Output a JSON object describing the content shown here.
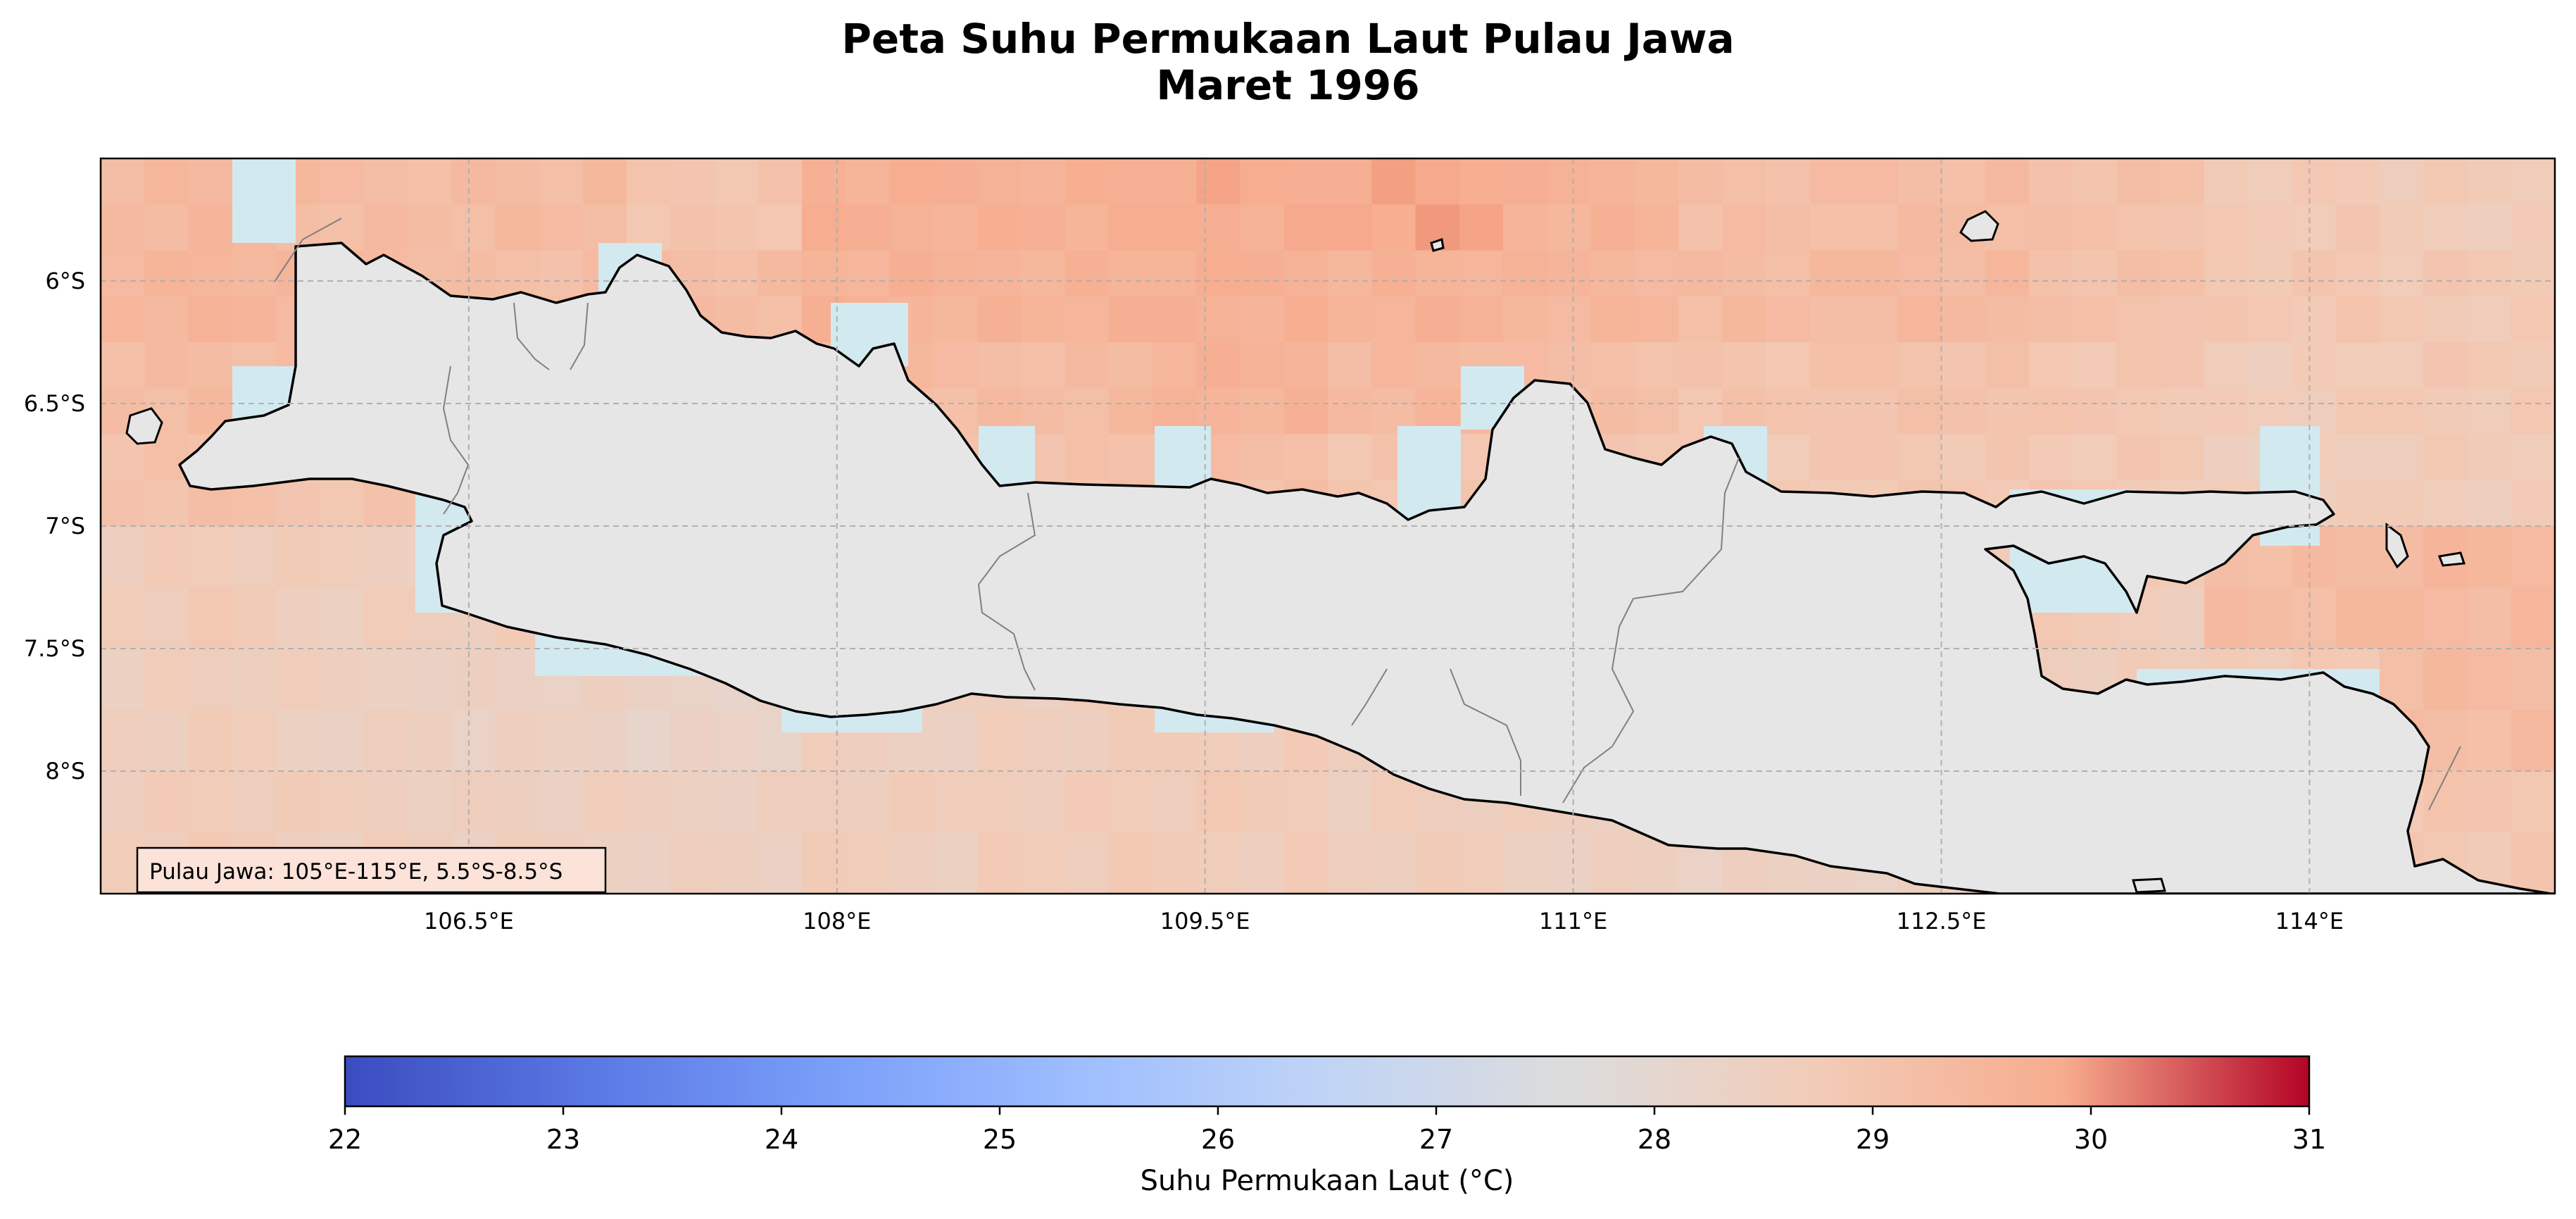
{
  "title": "Peta Suhu Permukaan Laut Pulau Jawa",
  "subtitle": "Maret 1996",
  "inset_label": "Pulau Jawa: 105°E-115°E, 5.5°S-8.5°S",
  "colorbar": {
    "label": "Suhu Permukaan Laut (°C)",
    "min": 22,
    "max": 31,
    "ticks": [
      "22",
      "23",
      "24",
      "25",
      "26",
      "27",
      "28",
      "29",
      "30",
      "31"
    ],
    "colormap": "coolwarm"
  },
  "colors": {
    "land": "#e6e6e6",
    "shallow_water": "#d3e9f0",
    "coast": "#000000",
    "province_border": "#808080",
    "grid": "#b0b0b0"
  },
  "chart_data": {
    "type": "heatmap",
    "title": "Peta Suhu Permukaan Laut Pulau Jawa",
    "subtitle": "Maret 1996",
    "xlim": [
      105,
      115
    ],
    "ylim": [
      -8.5,
      -5.5
    ],
    "lon_step": 0.25,
    "lat_step": 0.25,
    "x_ticks": [
      {
        "value": 106.5,
        "label": "106.5°E"
      },
      {
        "value": 108,
        "label": "108°E"
      },
      {
        "value": 109.5,
        "label": "109.5°E"
      },
      {
        "value": 111,
        "label": "111°E"
      },
      {
        "value": 112.5,
        "label": "112.5°E"
      },
      {
        "value": 114,
        "label": "114°E"
      }
    ],
    "y_ticks": [
      {
        "value": -6,
        "label": "6°S"
      },
      {
        "value": -6.5,
        "label": "6.5°S"
      },
      {
        "value": -7,
        "label": "7°S"
      },
      {
        "value": -7.5,
        "label": "7.5°S"
      },
      {
        "value": -8,
        "label": "8°S"
      }
    ],
    "grid": true,
    "north_band_values": [
      [
        29.4,
        29.3,
        29.3,
        29.0,
        29.7,
        29.7,
        29.8,
        29.9,
        29.6,
        29.2,
        29.3,
        29.1,
        28.8,
        28.7
      ],
      [
        29.5,
        29.4,
        29.2,
        29.3,
        29.6,
        29.6,
        29.7,
        29.6,
        29.5,
        29.3,
        29.4,
        29.1,
        28.9,
        28.8
      ],
      [
        29.3,
        29.2,
        29.1,
        29.2,
        29.3,
        29.3,
        29.6,
        29.4,
        29.2,
        29.0,
        29.1,
        28.9,
        28.7,
        28.8
      ],
      [
        29.1,
        29.0,
        28.9,
        29.0,
        29.0,
        29.1,
        29.2,
        29.0,
        29.0,
        28.8,
        28.9,
        28.8,
        28.6,
        28.7
      ]
    ],
    "south_band_values": [
      [
        28.7,
        28.6,
        28.6,
        28.5,
        28.7,
        28.8,
        28.9,
        28.7,
        28.6,
        28.5,
        28.6,
        28.7,
        29.3,
        29.4
      ],
      [
        28.6,
        28.5,
        28.4,
        28.3,
        28.5,
        28.6,
        28.7,
        28.6,
        28.3,
        28.2,
        28.4,
        28.6,
        28.8,
        29.3
      ],
      [
        28.7,
        28.6,
        28.5,
        28.5,
        28.6,
        28.7,
        28.7,
        28.6,
        28.5,
        28.4,
        28.4,
        28.5,
        28.6,
        28.9
      ]
    ]
  }
}
